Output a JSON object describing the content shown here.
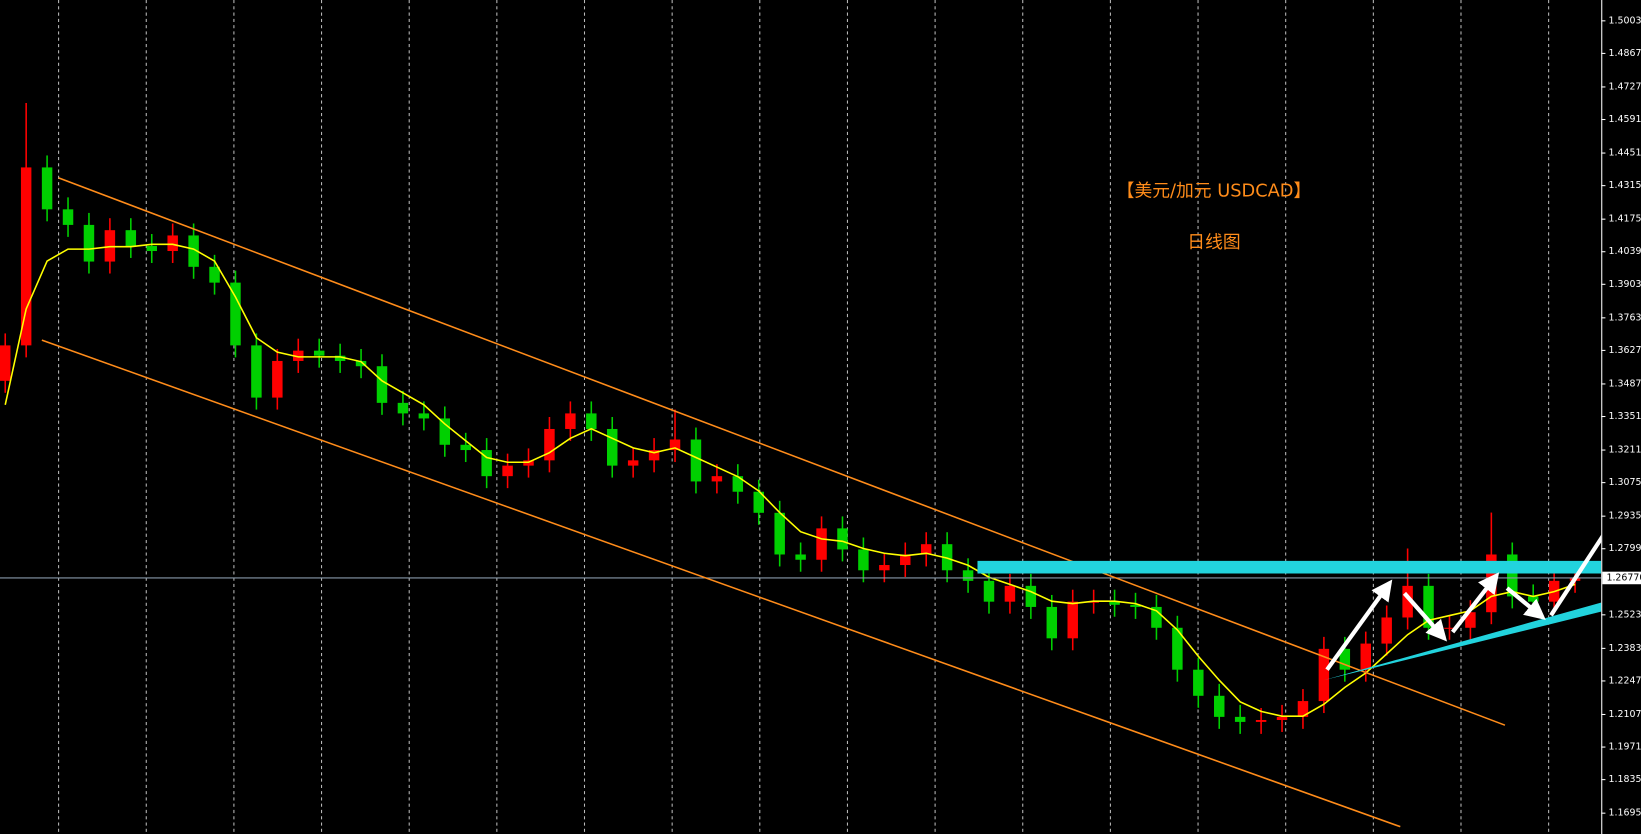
{
  "chart_data": {
    "type": "candlestick",
    "title": "【美元/加元 USDCAD】",
    "subtitle": "日线图",
    "up_color": "#ff0000",
    "down_color": "#00d000",
    "open": [
      1.35,
      1.3648,
      1.4391,
      1.4216,
      1.4151,
      1.3998,
      1.4129,
      1.4063,
      1.4042,
      1.4107,
      1.3976,
      1.391,
      1.3648,
      1.343,
      1.3583,
      1.3626,
      1.3605,
      1.3583,
      1.3561,
      1.3408,
      1.3364,
      1.3343,
      1.3233,
      1.3211,
      1.3102,
      1.3146,
      1.3168,
      1.3299,
      1.3364,
      1.3299,
      1.3146,
      1.3168,
      1.3211,
      1.3255,
      1.308,
      1.3102,
      1.3037,
      1.2949,
      1.2775,
      1.2753,
      1.2884,
      1.2796,
      1.2709,
      1.2731,
      1.2775,
      1.2818,
      1.2709,
      1.2665,
      1.2578,
      1.2644,
      1.2556,
      1.2425,
      1.2578,
      1.2578,
      1.2565,
      1.2556,
      1.2469,
      1.2294,
      1.2185,
      1.2097,
      1.2076,
      1.2084,
      1.2097,
      1.2163,
      1.2381,
      1.2294,
      1.2403,
      1.2512,
      1.2644,
      1.2469,
      1.2469,
      1.2534,
      1.2775,
      1.26,
      1.2578,
      1.2665
    ],
    "high": [
      1.3698,
      1.466,
      1.4441,
      1.4266,
      1.4201,
      1.4179,
      1.4179,
      1.4113,
      1.4157,
      1.4157,
      1.4026,
      1.396,
      1.3698,
      1.3633,
      1.3676,
      1.3676,
      1.3655,
      1.3633,
      1.3611,
      1.3458,
      1.3414,
      1.3393,
      1.3283,
      1.3261,
      1.3196,
      1.3218,
      1.3349,
      1.3414,
      1.3414,
      1.3349,
      1.3218,
      1.3261,
      1.338,
      1.3305,
      1.3152,
      1.3152,
      1.3087,
      1.2999,
      1.2825,
      1.2934,
      1.2934,
      1.2846,
      1.2781,
      1.2825,
      1.2868,
      1.2868,
      1.2759,
      1.2715,
      1.2694,
      1.2694,
      1.2606,
      1.2628,
      1.2628,
      1.2628,
      1.2615,
      1.2606,
      1.2519,
      1.2344,
      1.2235,
      1.2147,
      1.2134,
      1.2147,
      1.2213,
      1.2431,
      1.2431,
      1.2453,
      1.2562,
      1.28,
      1.2694,
      1.2519,
      1.2584,
      1.295,
      1.2825,
      1.265,
      1.2715,
      1.2727
    ],
    "low": [
      1.345,
      1.3598,
      1.4166,
      1.4101,
      1.3948,
      1.3948,
      1.4013,
      1.3992,
      1.3992,
      1.3926,
      1.386,
      1.3598,
      1.338,
      1.338,
      1.3533,
      1.3555,
      1.3533,
      1.3511,
      1.3358,
      1.3314,
      1.3293,
      1.3183,
      1.3161,
      1.3052,
      1.3052,
      1.3096,
      1.3118,
      1.3249,
      1.3249,
      1.3096,
      1.3096,
      1.3118,
      1.3161,
      1.303,
      1.303,
      1.2987,
      1.2899,
      1.2725,
      1.2703,
      1.2703,
      1.2746,
      1.2659,
      1.2659,
      1.2681,
      1.2725,
      1.2659,
      1.2615,
      1.2528,
      1.2528,
      1.2506,
      1.2375,
      1.2375,
      1.2528,
      1.2515,
      1.2506,
      1.2419,
      1.2244,
      1.2135,
      1.2047,
      1.2026,
      1.2026,
      1.2034,
      1.2047,
      1.2113,
      1.2244,
      1.2244,
      1.2353,
      1.2462,
      1.2419,
      1.2419,
      1.2419,
      1.2484,
      1.255,
      1.2528,
      1.2528,
      1.2615
    ],
    "close": [
      1.3648,
      1.4391,
      1.4216,
      1.4151,
      1.3998,
      1.4129,
      1.4063,
      1.4042,
      1.4107,
      1.3976,
      1.391,
      1.3648,
      1.343,
      1.3583,
      1.3626,
      1.3605,
      1.3583,
      1.3561,
      1.3408,
      1.3364,
      1.3343,
      1.3233,
      1.3211,
      1.3102,
      1.3146,
      1.3168,
      1.3299,
      1.3364,
      1.3299,
      1.3146,
      1.3168,
      1.3211,
      1.3255,
      1.308,
      1.3102,
      1.3037,
      1.2949,
      1.2775,
      1.2753,
      1.2884,
      1.2796,
      1.2709,
      1.2731,
      1.2775,
      1.2818,
      1.2709,
      1.2665,
      1.2578,
      1.2644,
      1.2556,
      1.2425,
      1.2578,
      1.2578,
      1.2565,
      1.2556,
      1.2469,
      1.2294,
      1.2185,
      1.2097,
      1.2076,
      1.2084,
      1.2097,
      1.2163,
      1.2381,
      1.2294,
      1.2403,
      1.2512,
      1.2644,
      1.2469,
      1.2469,
      1.2534,
      1.2775,
      1.26,
      1.2578,
      1.2665,
      1.2677
    ],
    "ma": {
      "color": "#ffff00",
      "values": [
        1.34,
        1.38,
        1.4,
        1.405,
        1.405,
        1.406,
        1.406,
        1.407,
        1.407,
        1.405,
        1.4,
        1.385,
        1.368,
        1.362,
        1.36,
        1.36,
        1.36,
        1.358,
        1.35,
        1.345,
        1.34,
        1.332,
        1.325,
        1.318,
        1.316,
        1.316,
        1.32,
        1.326,
        1.33,
        1.326,
        1.322,
        1.32,
        1.322,
        1.318,
        1.314,
        1.31,
        1.304,
        1.295,
        1.287,
        1.284,
        1.283,
        1.28,
        1.278,
        1.277,
        1.278,
        1.276,
        1.273,
        1.268,
        1.265,
        1.262,
        1.258,
        1.257,
        1.258,
        1.258,
        1.257,
        1.254,
        1.246,
        1.235,
        1.225,
        1.216,
        1.212,
        1.21,
        1.21,
        1.215,
        1.222,
        1.228,
        1.236,
        1.244,
        1.25,
        1.252,
        1.254,
        1.26,
        1.262,
        1.26,
        1.262,
        1.265
      ]
    },
    "current_price": {
      "value": 1.2677,
      "label": "1.26770"
    },
    "ylim": [
      1.1608,
      1.509
    ],
    "yticks": [
      {
        "value": 1.5003,
        "label": "1.50030"
      },
      {
        "value": 1.4867,
        "label": "1.48670"
      },
      {
        "value": 1.4727,
        "label": "1.47270"
      },
      {
        "value": 1.4591,
        "label": "1.45910"
      },
      {
        "value": 1.4451,
        "label": "1.44510"
      },
      {
        "value": 1.4315,
        "label": "1.43150"
      },
      {
        "value": 1.4175,
        "label": "1.41750"
      },
      {
        "value": 1.4039,
        "label": "1.40390"
      },
      {
        "value": 1.3903,
        "label": "1.39030"
      },
      {
        "value": 1.3763,
        "label": "1.37630"
      },
      {
        "value": 1.3627,
        "label": "1.36270"
      },
      {
        "value": 1.3487,
        "label": "1.34870"
      },
      {
        "value": 1.3351,
        "label": "1.33510"
      },
      {
        "value": 1.3211,
        "label": "1.32110"
      },
      {
        "value": 1.3075,
        "label": "1.30750"
      },
      {
        "value": 1.2935,
        "label": "1.29350"
      },
      {
        "value": 1.2799,
        "label": "1.27990"
      },
      {
        "value": 1.2523,
        "label": "1.25230"
      },
      {
        "value": 1.2383,
        "label": "1.23830"
      },
      {
        "value": 1.2247,
        "label": "1.22470"
      },
      {
        "value": 1.2107,
        "label": "1.21070"
      },
      {
        "value": 1.1971,
        "label": "1.19710"
      },
      {
        "value": 1.1835,
        "label": "1.18350"
      },
      {
        "value": 1.1695,
        "label": "1.16950"
      }
    ],
    "grid": true
  }
}
